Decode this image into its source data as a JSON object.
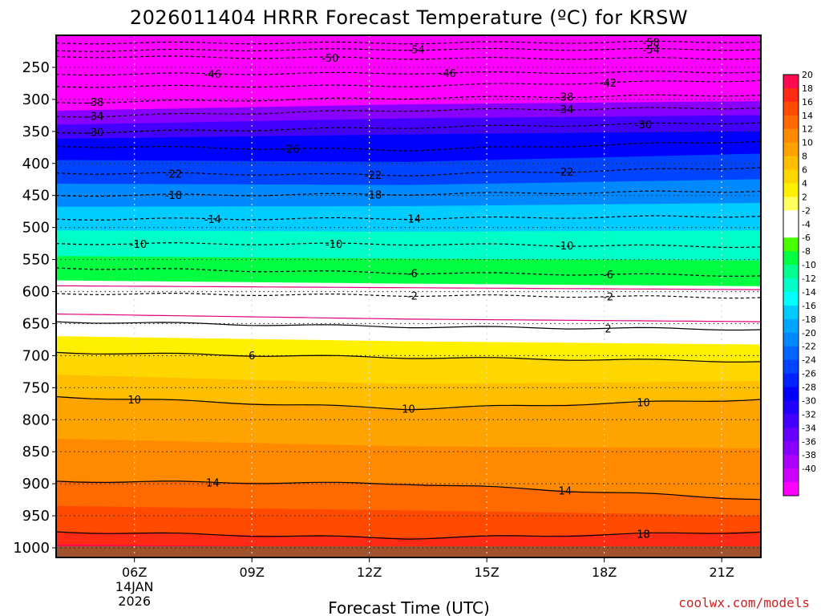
{
  "chart_data": {
    "type": "heatmap",
    "title": "2026011404 HRRR Forecast Temperature (ºC) for KRSW",
    "xlabel": "Forecast Time (UTC)",
    "credit": "coolwx.com/models",
    "x_ticks": [
      {
        "hour": 6,
        "label": "06Z",
        "sub": [
          "14JAN",
          "2026"
        ]
      },
      {
        "hour": 9,
        "label": "09Z",
        "sub": []
      },
      {
        "hour": 12,
        "label": "12Z",
        "sub": []
      },
      {
        "hour": 15,
        "label": "15Z",
        "sub": []
      },
      {
        "hour": 18,
        "label": "18Z",
        "sub": []
      },
      {
        "hour": 21,
        "label": "21Z",
        "sub": []
      }
    ],
    "x_range_hours": [
      4,
      22
    ],
    "y_ticks": [
      "250",
      "300",
      "350",
      "400",
      "450",
      "500",
      "550",
      "600",
      "650",
      "700",
      "750",
      "800",
      "850",
      "900",
      "950",
      "1000"
    ],
    "y_range_hpa": [
      200,
      1015
    ],
    "colorbar": {
      "labels": [
        "20",
        "18",
        "16",
        "14",
        "12",
        "10",
        "8",
        "6",
        "4",
        "2",
        "-2",
        "-4",
        "-6",
        "-8",
        "-10",
        "-12",
        "-14",
        "-16",
        "-18",
        "-20",
        "-22",
        "-24",
        "-26",
        "-28",
        "-30",
        "-32",
        "-34",
        "-36",
        "-38",
        "-40"
      ],
      "colors": [
        "#ff0a50",
        "#ff2a14",
        "#ff4a00",
        "#ff6a00",
        "#ff8a00",
        "#ffa300",
        "#ffbe00",
        "#ffd700",
        "#fff000",
        "#ffff60",
        "#ffffff",
        "#ffffff",
        "#48ff00",
        "#00ff40",
        "#00ff90",
        "#00ffc8",
        "#00ffff",
        "#00ccff",
        "#00a6ff",
        "#0088ff",
        "#0066ff",
        "#0044ff",
        "#0022ff",
        "#0000ff",
        "#2200ff",
        "#4400ff",
        "#6600ff",
        "#8800ff",
        "#aa00ff",
        "#cc00ff",
        "#ff00ff"
      ]
    },
    "contours": [
      {
        "value": "-58",
        "pressure": [
          212,
          212,
          210
        ],
        "label_at_hours": [
          19.2
        ]
      },
      {
        "value": "-54",
        "pressure": [
          224,
          222,
          222
        ],
        "label_at_hours": [
          13.2,
          19.2
        ]
      },
      {
        "value": "-50",
        "pressure": [
          233,
          236,
          236
        ],
        "label_at_hours": [
          11.0
        ]
      },
      {
        "value": "-46",
        "pressure": [
          261,
          259,
          257
        ],
        "label_at_hours": [
          8.0,
          14.0
        ]
      },
      {
        "value": "-42",
        "pressure": [
          280,
          279,
          270
        ],
        "label_at_hours": [
          18.1
        ]
      },
      {
        "value": "-38",
        "pressure": [
          305,
          298,
          293
        ],
        "label_at_hours": [
          5.0,
          17.0
        ]
      },
      {
        "value": "-34",
        "pressure": [
          327,
          317,
          313
        ],
        "label_at_hours": [
          5.0,
          17.0
        ]
      },
      {
        "value": "-30",
        "pressure": [
          352,
          344,
          336
        ],
        "label_at_hours": [
          5.0,
          19.0
        ]
      },
      {
        "value": "-26",
        "pressure": [
          373,
          379,
          365
        ],
        "label_at_hours": [
          10.0
        ]
      },
      {
        "value": "-22",
        "pressure": [
          415,
          418,
          406
        ],
        "label_at_hours": [
          7.0,
          12.1,
          17.0
        ]
      },
      {
        "value": "-18",
        "pressure": [
          450,
          448,
          443
        ],
        "label_at_hours": [
          7.0,
          12.1
        ]
      },
      {
        "value": "-14",
        "pressure": [
          487,
          486,
          482
        ],
        "label_at_hours": [
          8.0,
          13.1
        ]
      },
      {
        "value": "-10",
        "pressure": [
          525,
          526,
          530
        ],
        "label_at_hours": [
          6.1,
          11.1,
          17.0
        ]
      },
      {
        "value": "-6",
        "pressure": [
          563,
          571,
          575
        ],
        "label_at_hours": [
          13.1,
          18.1
        ]
      },
      {
        "value": "-2",
        "pressure": [
          603,
          606,
          609
        ],
        "label_at_hours": [
          13.1,
          18.1
        ]
      },
      {
        "value": "2",
        "pressure": [
          647,
          655,
          659
        ],
        "label_at_hours": [
          18.1
        ]
      },
      {
        "value": "6",
        "pressure": [
          695,
          703,
          709
        ],
        "label_at_hours": [
          9.0
        ]
      },
      {
        "value": "10",
        "pressure": [
          764,
          783,
          768
        ],
        "label_at_hours": [
          6.0,
          13.0,
          19.0
        ]
      },
      {
        "value": "14",
        "pressure": [
          896,
          900,
          924
        ],
        "label_at_hours": [
          8.0,
          17.0
        ]
      },
      {
        "value": "18",
        "pressure": [
          975,
          985,
          975
        ],
        "label_at_hours": [
          19.0
        ]
      }
    ],
    "color_layers": [
      {
        "pressure": [
          200,
          200,
          200
        ],
        "value": "-58"
      },
      {
        "pressure": [
          300,
          290,
          285
        ],
        "value": "-40"
      },
      {
        "pressure": [
          318,
          308,
          303
        ],
        "value": "-36"
      },
      {
        "pressure": [
          340,
          330,
          325
        ],
        "value": "-32"
      },
      {
        "pressure": [
          362,
          355,
          350
        ],
        "value": "-28"
      },
      {
        "pressure": [
          395,
          398,
          385
        ],
        "value": "-24"
      },
      {
        "pressure": [
          432,
          434,
          425
        ],
        "value": "-20"
      },
      {
        "pressure": [
          468,
          467,
          462
        ],
        "value": "-16"
      },
      {
        "pressure": [
          505,
          507,
          505
        ],
        "value": "-12"
      },
      {
        "pressure": [
          545,
          549,
          552
        ],
        "value": "-8"
      },
      {
        "pressure": [
          583,
          588,
          592
        ],
        "value": "-4"
      },
      {
        "pressure": [
          603,
          606,
          609
        ],
        "value": "-2"
      },
      {
        "pressure": [
          647,
          655,
          659
        ],
        "value": "2"
      },
      {
        "pressure": [
          670,
          678,
          683
        ],
        "value": "4"
      },
      {
        "pressure": [
          695,
          703,
          709
        ],
        "value": "6"
      },
      {
        "pressure": [
          730,
          745,
          740
        ],
        "value": "8"
      },
      {
        "pressure": [
          764,
          783,
          768
        ],
        "value": "10"
      },
      {
        "pressure": [
          830,
          842,
          845
        ],
        "value": "12"
      },
      {
        "pressure": [
          896,
          900,
          924
        ],
        "value": "14"
      },
      {
        "pressure": [
          935,
          942,
          950
        ],
        "value": "16"
      },
      {
        "pressure": [
          975,
          985,
          975
        ],
        "value": "18"
      },
      {
        "pressure": [
          995,
          1000,
          998
        ],
        "value": "20"
      }
    ]
  }
}
